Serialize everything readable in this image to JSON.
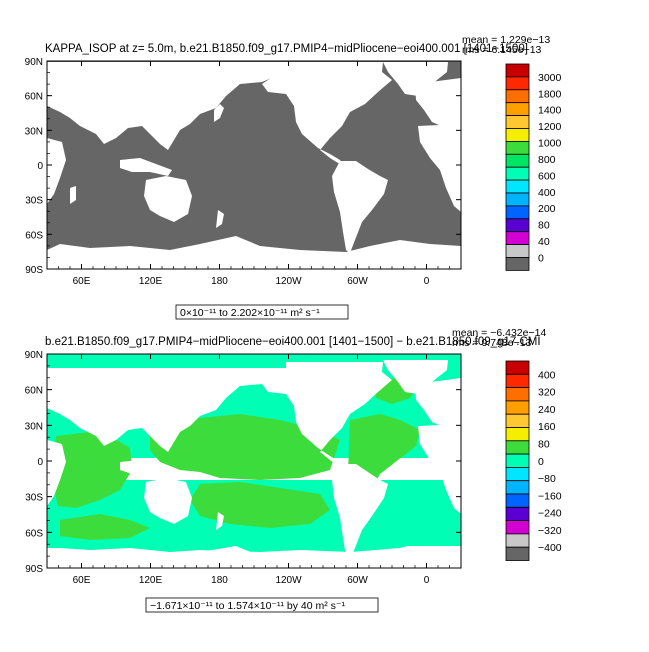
{
  "top_panel": {
    "title": "KAPPA_ISOP at z=    5.0m, b.e21.B1850.f09_g17.PMIP4−midPliocene−eoi400.001 [1401−1500]",
    "mean": "mean = 1.229e−13",
    "rms": "rms = 6.145e−13",
    "range": "0×10⁻¹¹ to 2.202×10⁻¹¹ m² s⁻¹",
    "ocean_color": "#666666",
    "colorbar_labels": [
      "3000",
      "1800",
      "1400",
      "1200",
      "1000",
      "800",
      "600",
      "400",
      "200",
      "80",
      "40",
      "0"
    ],
    "colorbar_colors": [
      "#c80000",
      "#ff2800",
      "#ff6e00",
      "#ffa000",
      "#ffc832",
      "#f5ee00",
      "#3cdc3c",
      "#00e664",
      "#00ffb4",
      "#00e6ff",
      "#00b4ff",
      "#0064ff",
      "#5a00d2",
      "#d200d2",
      "#c8c8c8",
      "#666666"
    ]
  },
  "bottom_panel": {
    "title": "b.e21.B1850.f09_g17.PMIP4−midPliocene−eoi400.001 [1401−1500] − b.e21.B1850.f09_g17.CMI",
    "mean": "mean = −6.432e−14",
    "rms": "rms = 9.748e−13",
    "range": "−1.671×10⁻¹¹ to 1.574×10⁻¹¹ by 40 m² s⁻¹",
    "colorbar_labels": [
      "400",
      "320",
      "240",
      "160",
      "80",
      "0",
      "−80",
      "−160",
      "−240",
      "−320",
      "−400"
    ],
    "colorbar_colors": [
      "#c80000",
      "#ff2800",
      "#ff6e00",
      "#ffa000",
      "#ffc832",
      "#f5ee00",
      "#3cdc3c",
      "#00ffb4",
      "#00e6ff",
      "#00b4ff",
      "#0064ff",
      "#5a00d2",
      "#d200d2",
      "#c8c8c8",
      "#666666"
    ]
  },
  "axes": {
    "lat_labels": [
      "90N",
      "60N",
      "30N",
      "0",
      "30S",
      "60S",
      "90S"
    ],
    "lon_labels": [
      "60E",
      "120E",
      "180",
      "120W",
      "60W",
      "0"
    ]
  }
}
